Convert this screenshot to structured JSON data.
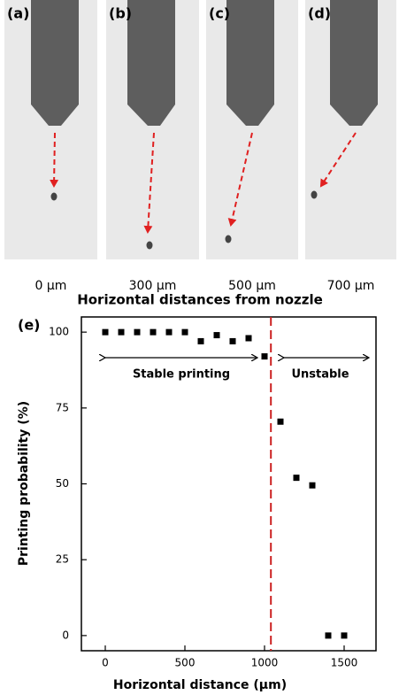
{
  "panels": [
    {
      "label": "(a)",
      "caption": "0 μm"
    },
    {
      "label": "(b)",
      "caption": "300 μm"
    },
    {
      "label": "(c)",
      "caption": "500 μm"
    },
    {
      "label": "(d)",
      "caption": "700 μm"
    }
  ],
  "panels_caption": "Horizontal distances from nozzle",
  "chart_data": {
    "type": "scatter",
    "panel_label": "(e)",
    "x_label": "Horizontal distance (μm)",
    "y_label": "Printing probability (%)",
    "x": [
      0,
      100,
      200,
      300,
      400,
      500,
      600,
      700,
      800,
      900,
      1000,
      1100,
      1200,
      1300,
      1400,
      1500
    ],
    "values": [
      100,
      100,
      100,
      100,
      100,
      100,
      97,
      99,
      97,
      98,
      92,
      70.5,
      52,
      49.5,
      0,
      0
    ],
    "color": "#000000",
    "xlim": [
      -150,
      1700
    ],
    "ylim": [
      -5,
      105
    ],
    "xticks": [
      0,
      500,
      1000,
      1500
    ],
    "yticks": [
      0,
      25,
      50,
      75,
      100
    ],
    "reference_line": {
      "x": 1040,
      "color": "#cc2222"
    },
    "annotations": [
      "Stable printing",
      "Unstable"
    ]
  }
}
